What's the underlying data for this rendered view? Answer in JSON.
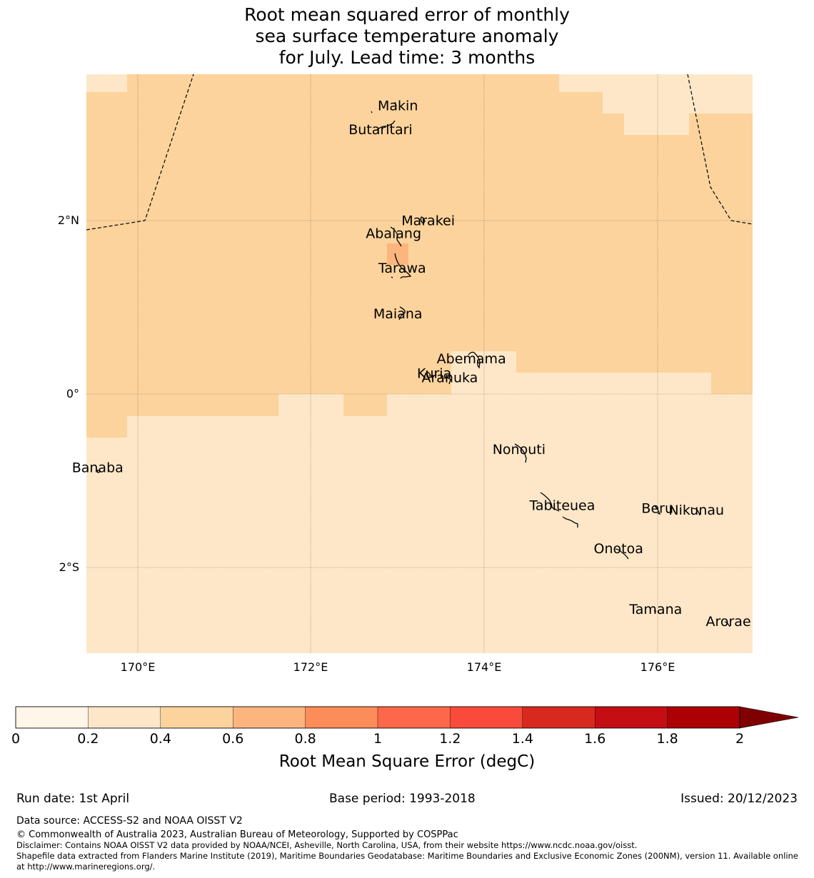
{
  "title": {
    "line1": "Root mean squared error of monthly",
    "line2": "sea surface temperature anomaly",
    "line3": "for July. Lead time: 3 months"
  },
  "map": {
    "lat_range": [
      -3.0,
      3.7
    ],
    "lon_range": [
      169.4,
      177.1
    ],
    "lat_labels": [
      "2°N",
      "0°",
      "2°S"
    ],
    "lon_labels": [
      "170°E",
      "172°E",
      "174°E",
      "176°E"
    ],
    "islands": [
      {
        "name": "Makin",
        "lon": 173.0,
        "lat": 3.33
      },
      {
        "name": "Butaritari",
        "lon": 172.8,
        "lat": 3.05
      },
      {
        "name": "Marakei",
        "lon": 173.35,
        "lat": 2.0
      },
      {
        "name": "Abaiang",
        "lon": 172.95,
        "lat": 1.85
      },
      {
        "name": "Tarawa",
        "lon": 173.05,
        "lat": 1.45
      },
      {
        "name": "Maiana",
        "lon": 173.0,
        "lat": 0.92
      },
      {
        "name": "Abemama",
        "lon": 173.85,
        "lat": 0.4
      },
      {
        "name": "Kuria",
        "lon": 173.42,
        "lat": 0.23
      },
      {
        "name": "Aranuka",
        "lon": 173.6,
        "lat": 0.18
      },
      {
        "name": "Nonouti",
        "lon": 174.4,
        "lat": -0.65
      },
      {
        "name": "Banaba",
        "lon": 169.53,
        "lat": -0.86
      },
      {
        "name": "Tabiteuea",
        "lon": 174.9,
        "lat": -1.3
      },
      {
        "name": "Beru",
        "lon": 176.0,
        "lat": -1.33
      },
      {
        "name": "Nikunau",
        "lon": 176.45,
        "lat": -1.35
      },
      {
        "name": "Onotoa",
        "lon": 175.55,
        "lat": -1.8
      },
      {
        "name": "Tamana",
        "lon": 175.98,
        "lat": -2.5
      },
      {
        "name": "Arorae",
        "lon": 176.82,
        "lat": -2.64
      }
    ]
  },
  "colorbar": {
    "ticks": [
      "0",
      "0.2",
      "0.4",
      "0.6",
      "0.8",
      "1",
      "1.2",
      "1.4",
      "1.6",
      "1.8",
      "2"
    ],
    "colors": [
      "#fff5e8",
      "#fee7c8",
      "#fcd39c",
      "#fcb57e",
      "#fc8c59",
      "#fc6849",
      "#f94a3c",
      "#d8291f",
      "#c50e14",
      "#ad0006"
    ],
    "extend_color": "#7e0000",
    "label": "Root Mean Square Error (degC)"
  },
  "footer": {
    "run_date": "Run date: 1st April",
    "base_period": "Base period: 1993-2018",
    "issued": "Issued: 20/12/2023",
    "data_source": "Data source: ACCESS-S2 and NOAA OISST V2",
    "copyright": "© Commonwealth of Australia 2023, Australian Bureau of Meteorology, Supported by COSPPac",
    "disclaimer": "Disclaimer: Contains NOAA OISST V2 data provided by NOAA/NCEI, Asheville, North Carolina, USA, from their website https://www.ncdc.noaa.gov/oisst.",
    "shapefile": "Shapefile data extracted from Flanders Marine Institute (2019), Maritime Boundaries Geodatabase: Maritime Boundaries and Exclusive Economic Zones (200NM), version 11. Available online at http://www.marineregions.org/."
  }
}
